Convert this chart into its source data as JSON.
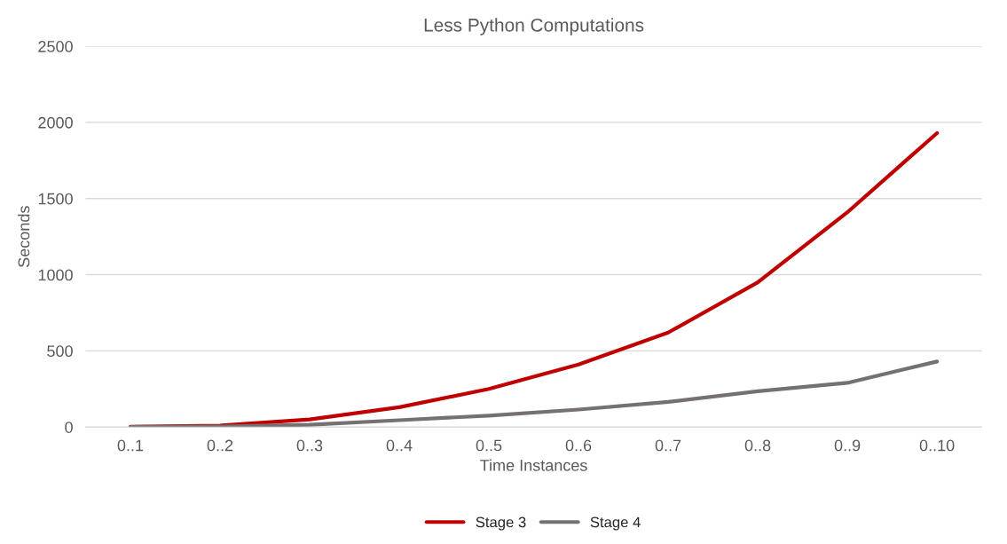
{
  "chart_data": {
    "type": "line",
    "title": "Less Python Computations",
    "xlabel": "Time Instances",
    "ylabel": "Seconds",
    "categories": [
      "0..1",
      "0..2",
      "0..3",
      "0..4",
      "0..5",
      "0..6",
      "0..7",
      "0..8",
      "0..9",
      "0..10"
    ],
    "series": [
      {
        "name": "Stage 3",
        "color": "#c00000",
        "values": [
          2,
          10,
          50,
          130,
          250,
          410,
          620,
          950,
          1410,
          1930
        ]
      },
      {
        "name": "Stage 4",
        "color": "#767171",
        "values": [
          0,
          3,
          15,
          45,
          75,
          115,
          165,
          235,
          290,
          430
        ]
      }
    ],
    "ylim": [
      0,
      2500
    ],
    "yticks": [
      0,
      500,
      1000,
      1500,
      2000,
      2500
    ],
    "grid": "y",
    "legend": "bottom",
    "marker": "none",
    "line_style": "solid"
  }
}
